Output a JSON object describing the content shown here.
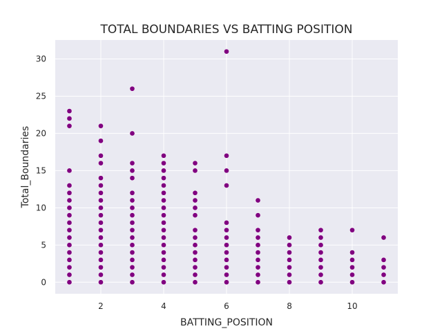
{
  "chart_data": {
    "type": "scatter",
    "title": "TOTAL BOUNDARIES VS BATTING POSITION",
    "xlabel": "BATTING_POSITION",
    "ylabel": "Total_Boundaries",
    "xlim": [
      0.55,
      11.45
    ],
    "ylim": [
      -1.55,
      32.55
    ],
    "xticks": [
      2,
      4,
      6,
      8,
      10
    ],
    "yticks": [
      0,
      5,
      10,
      15,
      20,
      25,
      30
    ],
    "grid": true,
    "background_color": "#eaeaf2",
    "marker_color": "#800080",
    "series": [
      {
        "points": [
          [
            1,
            0
          ],
          [
            1,
            1
          ],
          [
            1,
            2
          ],
          [
            1,
            3
          ],
          [
            1,
            4
          ],
          [
            1,
            5
          ],
          [
            1,
            6
          ],
          [
            1,
            7
          ],
          [
            1,
            8
          ],
          [
            1,
            9
          ],
          [
            1,
            10
          ],
          [
            1,
            11
          ],
          [
            1,
            12
          ],
          [
            1,
            13
          ],
          [
            1,
            15
          ],
          [
            1,
            21
          ],
          [
            1,
            22
          ],
          [
            1,
            23
          ],
          [
            2,
            0
          ],
          [
            2,
            1
          ],
          [
            2,
            2
          ],
          [
            2,
            3
          ],
          [
            2,
            4
          ],
          [
            2,
            5
          ],
          [
            2,
            6
          ],
          [
            2,
            7
          ],
          [
            2,
            8
          ],
          [
            2,
            9
          ],
          [
            2,
            10
          ],
          [
            2,
            11
          ],
          [
            2,
            12
          ],
          [
            2,
            13
          ],
          [
            2,
            14
          ],
          [
            2,
            16
          ],
          [
            2,
            17
          ],
          [
            2,
            19
          ],
          [
            2,
            21
          ],
          [
            3,
            0
          ],
          [
            3,
            1
          ],
          [
            3,
            2
          ],
          [
            3,
            3
          ],
          [
            3,
            4
          ],
          [
            3,
            5
          ],
          [
            3,
            6
          ],
          [
            3,
            7
          ],
          [
            3,
            8
          ],
          [
            3,
            9
          ],
          [
            3,
            10
          ],
          [
            3,
            11
          ],
          [
            3,
            12
          ],
          [
            3,
            14
          ],
          [
            3,
            15
          ],
          [
            3,
            16
          ],
          [
            3,
            20
          ],
          [
            3,
            26
          ],
          [
            4,
            0
          ],
          [
            4,
            1
          ],
          [
            4,
            2
          ],
          [
            4,
            3
          ],
          [
            4,
            4
          ],
          [
            4,
            5
          ],
          [
            4,
            6
          ],
          [
            4,
            7
          ],
          [
            4,
            8
          ],
          [
            4,
            9
          ],
          [
            4,
            10
          ],
          [
            4,
            11
          ],
          [
            4,
            12
          ],
          [
            4,
            13
          ],
          [
            4,
            14
          ],
          [
            4,
            15
          ],
          [
            4,
            16
          ],
          [
            4,
            17
          ],
          [
            5,
            0
          ],
          [
            5,
            1
          ],
          [
            5,
            2
          ],
          [
            5,
            3
          ],
          [
            5,
            4
          ],
          [
            5,
            5
          ],
          [
            5,
            6
          ],
          [
            5,
            7
          ],
          [
            5,
            9
          ],
          [
            5,
            10
          ],
          [
            5,
            11
          ],
          [
            5,
            12
          ],
          [
            5,
            15
          ],
          [
            5,
            16
          ],
          [
            6,
            0
          ],
          [
            6,
            1
          ],
          [
            6,
            2
          ],
          [
            6,
            3
          ],
          [
            6,
            4
          ],
          [
            6,
            5
          ],
          [
            6,
            6
          ],
          [
            6,
            7
          ],
          [
            6,
            8
          ],
          [
            6,
            13
          ],
          [
            6,
            15
          ],
          [
            6,
            17
          ],
          [
            6,
            31
          ],
          [
            7,
            0
          ],
          [
            7,
            1
          ],
          [
            7,
            2
          ],
          [
            7,
            3
          ],
          [
            7,
            4
          ],
          [
            7,
            5
          ],
          [
            7,
            6
          ],
          [
            7,
            7
          ],
          [
            7,
            9
          ],
          [
            7,
            11
          ],
          [
            8,
            0
          ],
          [
            8,
            1
          ],
          [
            8,
            2
          ],
          [
            8,
            3
          ],
          [
            8,
            4
          ],
          [
            8,
            5
          ],
          [
            8,
            6
          ],
          [
            9,
            0
          ],
          [
            9,
            1
          ],
          [
            9,
            2
          ],
          [
            9,
            3
          ],
          [
            9,
            4
          ],
          [
            9,
            5
          ],
          [
            9,
            6
          ],
          [
            9,
            7
          ],
          [
            10,
            0
          ],
          [
            10,
            1
          ],
          [
            10,
            2
          ],
          [
            10,
            3
          ],
          [
            10,
            4
          ],
          [
            10,
            7
          ],
          [
            11,
            0
          ],
          [
            11,
            1
          ],
          [
            11,
            2
          ],
          [
            11,
            3
          ],
          [
            11,
            6
          ]
        ]
      }
    ]
  }
}
